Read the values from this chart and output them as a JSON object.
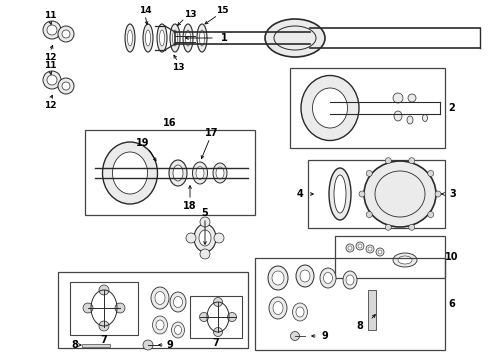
{
  "bg_color": "#ffffff",
  "line_color": "#2a2a2a",
  "text_color": "#000000",
  "figsize": [
    4.9,
    3.6
  ],
  "dpi": 100,
  "gray_fill": "#d8d8d8",
  "light_fill": "#ebebeb",
  "box_edge": "#444444"
}
